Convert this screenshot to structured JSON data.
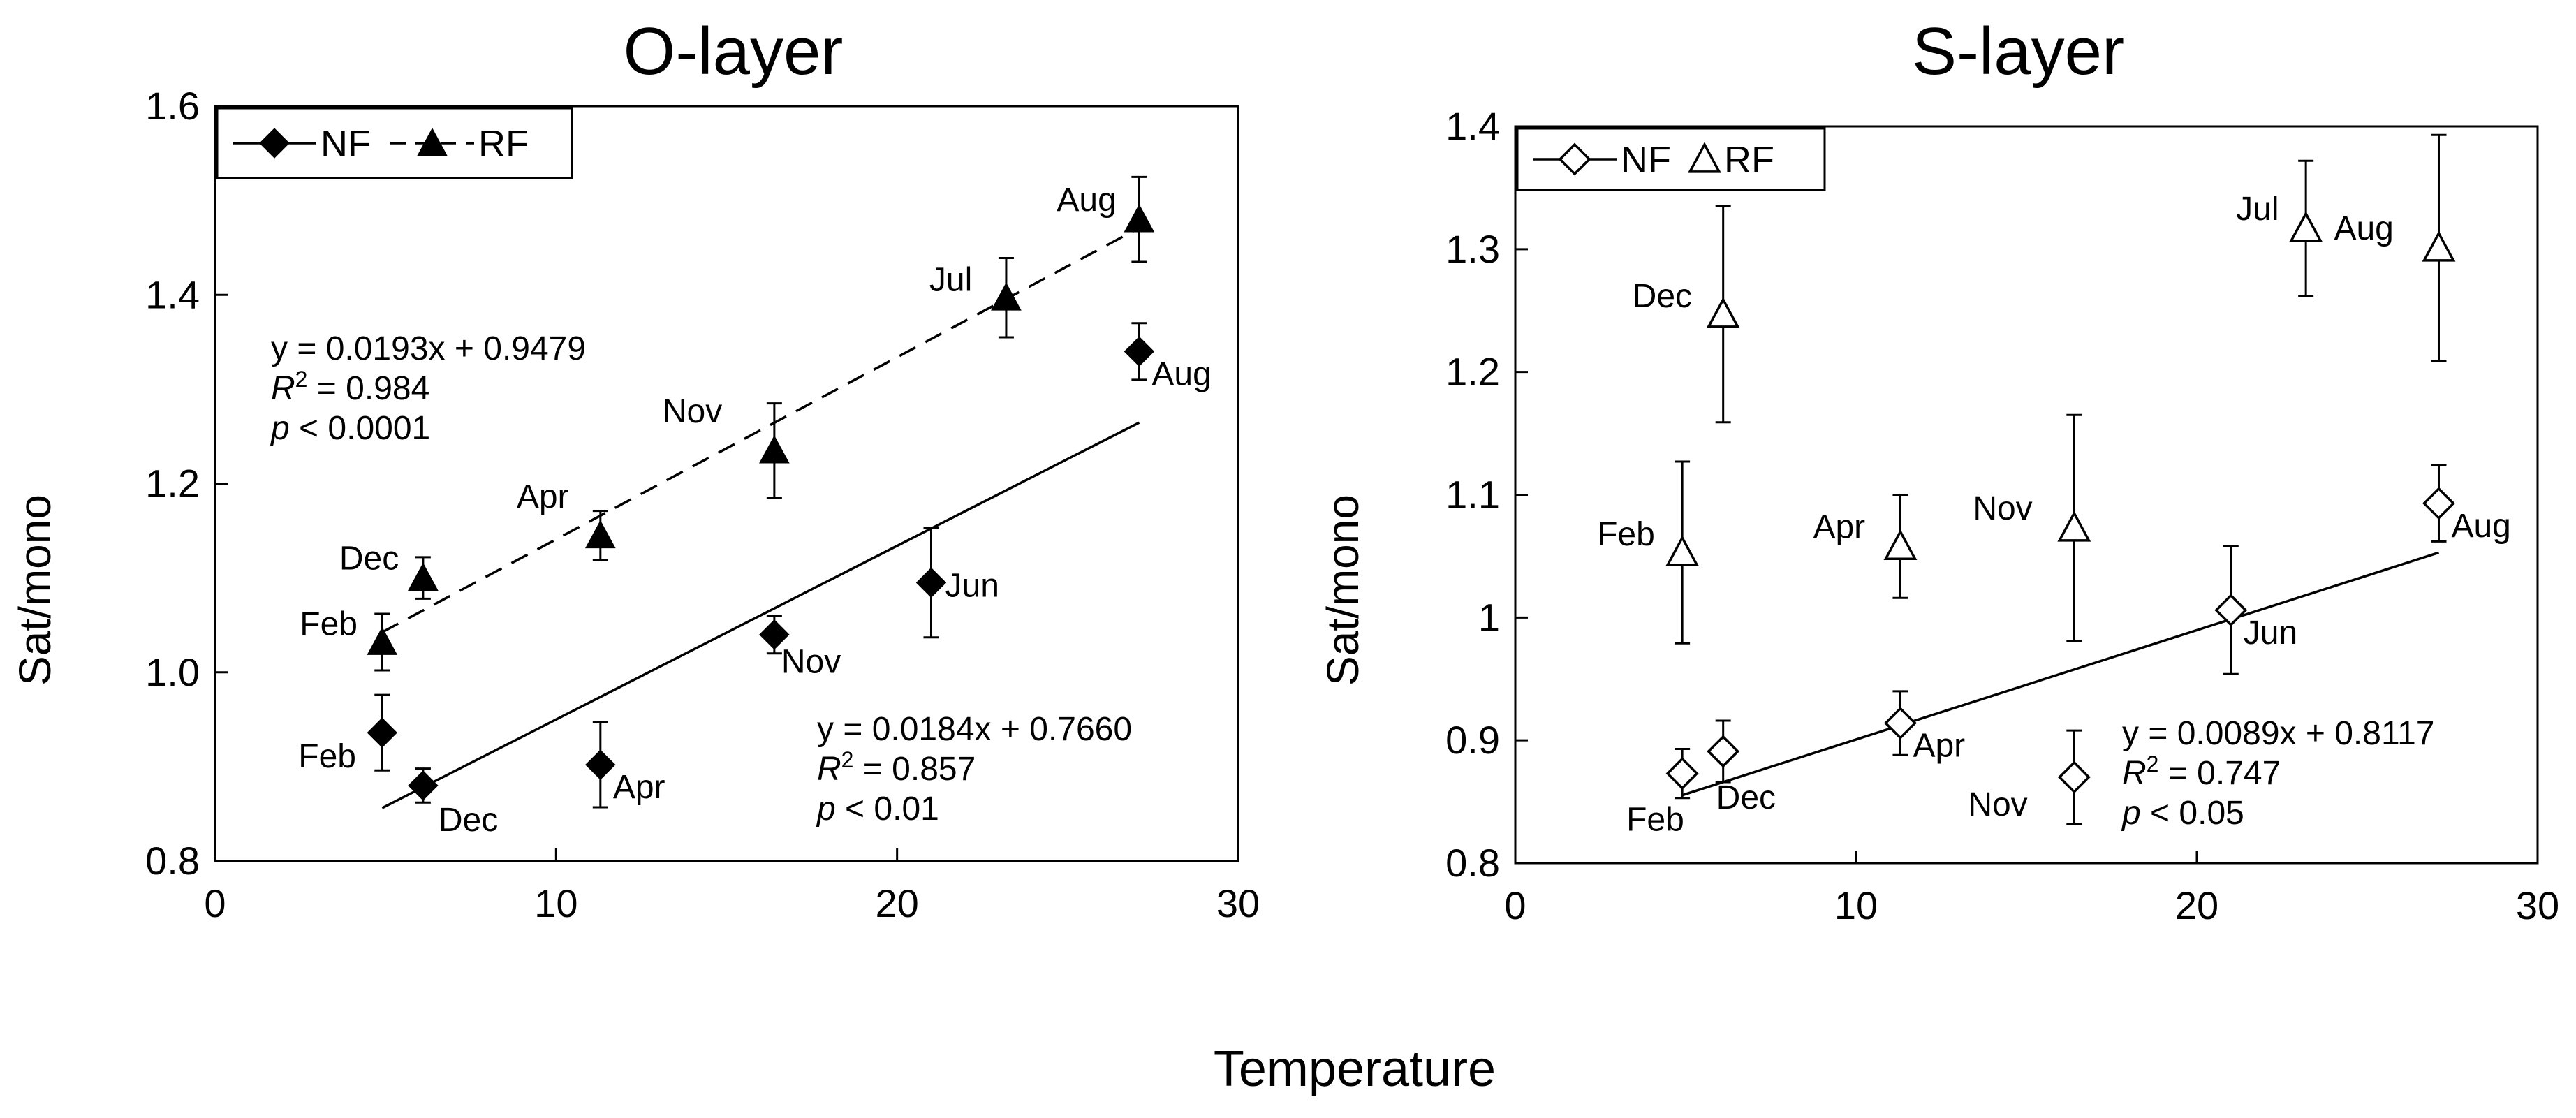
{
  "figure": {
    "xlabel": "Temperature"
  },
  "chart_data": [
    {
      "type": "scatter",
      "title": "O-layer",
      "xlabel": "",
      "ylabel": "Sat/mono",
      "xlim": [
        0,
        30
      ],
      "ylim": [
        0.8,
        1.6
      ],
      "xticks": [
        0,
        10,
        20,
        30
      ],
      "xtick_labels": [
        "0",
        "10",
        "20",
        "30"
      ],
      "yticks": [
        0.8,
        1.0,
        1.2,
        1.4,
        1.6
      ],
      "ytick_labels": [
        "0.8",
        "1.0",
        "1.2",
        "1.4",
        "1.6"
      ],
      "grid": false,
      "legend": {
        "position": "top-left",
        "entries": [
          "NF",
          "RF"
        ]
      },
      "series": [
        {
          "name": "NF",
          "marker": "filled-diamond",
          "color": "#000000",
          "line_style": "solid",
          "points": [
            {
              "label": "Feb",
              "x": 4.9,
              "y": 0.936,
              "err": 0.04
            },
            {
              "label": "Dec",
              "x": 6.1,
              "y": 0.88,
              "err": 0.018
            },
            {
              "label": "Apr",
              "x": 11.3,
              "y": 0.902,
              "err": 0.045
            },
            {
              "label": "Nov",
              "x": 16.4,
              "y": 1.04,
              "err": 0.02
            },
            {
              "label": "Jun",
              "x": 21.0,
              "y": 1.095,
              "err": 0.058
            },
            {
              "label": "Aug",
              "x": 27.1,
              "y": 1.34,
              "err": 0.03
            }
          ],
          "fit": {
            "slope": 0.0184,
            "intercept": 0.766,
            "x_range": [
              4.9,
              27.1
            ]
          },
          "annotation": [
            "y = 0.0184x + 0.7660",
            "R",
            "2",
            " = 0.857",
            "p",
            " < 0.01"
          ]
        },
        {
          "name": "RF",
          "marker": "filled-triangle",
          "color": "#000000",
          "line_style": "dashed",
          "points": [
            {
              "label": "Feb",
              "x": 4.9,
              "y": 1.032,
              "err": 0.03
            },
            {
              "label": "Dec",
              "x": 6.1,
              "y": 1.1,
              "err": 0.022
            },
            {
              "label": "Apr",
              "x": 11.3,
              "y": 1.145,
              "err": 0.026
            },
            {
              "label": "Nov",
              "x": 16.4,
              "y": 1.235,
              "err": 0.05
            },
            {
              "label": "Jul",
              "x": 23.2,
              "y": 1.397,
              "err": 0.042
            },
            {
              "label": "Aug",
              "x": 27.1,
              "y": 1.48,
              "err": 0.045
            }
          ],
          "fit": {
            "slope": 0.0193,
            "intercept": 0.9479,
            "x_range": [
              4.9,
              27.1
            ]
          },
          "annotation": [
            "y = 0.0193x + 0.9479",
            "R",
            "2",
            " = 0.984",
            "p",
            " < 0.0001"
          ]
        }
      ]
    },
    {
      "type": "scatter",
      "title": "S-layer",
      "xlabel": "",
      "ylabel": "Sat/mono",
      "xlim": [
        0,
        30
      ],
      "ylim": [
        0.8,
        1.4
      ],
      "xticks": [
        0,
        10,
        20,
        30
      ],
      "xtick_labels": [
        "0",
        "10",
        "20",
        "30"
      ],
      "yticks": [
        0.8,
        0.9,
        1.0,
        1.1,
        1.2,
        1.3,
        1.4
      ],
      "ytick_labels": [
        "0.8",
        "0.9",
        "1",
        "1.1",
        "1.2",
        "1.3",
        "1.4"
      ],
      "grid": false,
      "legend": {
        "position": "top-left",
        "entries": [
          "NF",
          "RF"
        ]
      },
      "series": [
        {
          "name": "NF",
          "marker": "open-diamond",
          "color": "#000000",
          "line_style": "solid",
          "points": [
            {
              "label": "Feb",
              "x": 4.9,
              "y": 0.873,
              "err": 0.02
            },
            {
              "label": "Dec",
              "x": 6.1,
              "y": 0.891,
              "err": 0.025
            },
            {
              "label": "Apr",
              "x": 11.3,
              "y": 0.914,
              "err": 0.026
            },
            {
              "label": "Nov",
              "x": 16.4,
              "y": 0.87,
              "err": 0.038
            },
            {
              "label": "Jun",
              "x": 21.0,
              "y": 1.006,
              "err": 0.052
            },
            {
              "label": "Aug",
              "x": 27.1,
              "y": 1.093,
              "err": 0.031
            }
          ],
          "fit": {
            "slope": 0.0089,
            "intercept": 0.8117,
            "x_range": [
              4.9,
              27.1
            ]
          },
          "annotation": [
            "y = 0.0089x + 0.8117",
            "R",
            "2",
            " = 0.747",
            "p",
            " < 0.05"
          ]
        },
        {
          "name": "RF",
          "marker": "open-triangle",
          "color": "#000000",
          "line_style": "none",
          "points": [
            {
              "label": "Feb",
              "x": 4.9,
              "y": 1.053,
              "err": 0.074
            },
            {
              "label": "Dec",
              "x": 6.1,
              "y": 1.247,
              "err": 0.088
            },
            {
              "label": "Apr",
              "x": 11.3,
              "y": 1.058,
              "err": 0.042
            },
            {
              "label": "Nov",
              "x": 16.4,
              "y": 1.073,
              "err": 0.092
            },
            {
              "label": "Jul",
              "x": 23.2,
              "y": 1.317,
              "err": 0.055
            },
            {
              "label": "Aug",
              "x": 27.1,
              "y": 1.301,
              "err": 0.092
            }
          ]
        }
      ]
    }
  ]
}
